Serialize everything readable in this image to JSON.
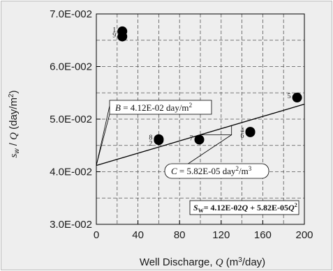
{
  "chart_data": {
    "type": "scatter",
    "xlabel": {
      "prefix": "Well Discharge, ",
      "var": "Q",
      "unit_open": " (m",
      "sup": "3",
      "unit_close": "/day)"
    },
    "ylabel": {
      "s": "s",
      "sub": "w",
      "slash": " / ",
      "var": "Q",
      "unit_open": " (day/m",
      "sup": "2",
      "unit_close": ")"
    },
    "xlim": [
      0,
      200
    ],
    "ylim": [
      0.03,
      0.07
    ],
    "x_ticks": [
      0,
      40,
      80,
      120,
      160,
      200
    ],
    "x_tick_labels": [
      "0",
      "40",
      "80",
      "120",
      "160",
      "200"
    ],
    "y_ticks": [
      0.03,
      0.04,
      0.05,
      0.06,
      0.07
    ],
    "y_tick_labels": [
      "3.0E-002",
      "4.0E-002",
      "5.0E-002",
      "6.0E-002",
      "7.0E-002"
    ],
    "grid": true,
    "points": [
      {
        "label": "1",
        "x": 25,
        "y": 0.0667
      },
      {
        "label": "9",
        "x": 25,
        "y": 0.0657
      },
      {
        "label": "8",
        "x": 60,
        "y": 0.0462
      },
      {
        "label": "2",
        "x": 60,
        "y": 0.046
      },
      {
        "label": "7",
        "x": 99,
        "y": 0.0461
      },
      {
        "label": "4",
        "x": 148,
        "y": 0.0476
      },
      {
        "label": "6",
        "x": 148,
        "y": 0.0475
      },
      {
        "label": "5",
        "x": 193,
        "y": 0.0541
      }
    ],
    "fit_line": {
      "intercept": 0.0412,
      "slope": 5.82e-05,
      "x_range": [
        0,
        200
      ]
    },
    "annotations": {
      "B": {
        "var": "B",
        "text": " = 4.12E-02 day/m",
        "sup": "2"
      },
      "C": {
        "var": "C",
        "text": " = 5.82E-05 day",
        "sup1": "2",
        "mid": "/m",
        "sup2": "3"
      },
      "equation": {
        "s": "S",
        "sub": "W",
        "text1": "= 4.12E-02",
        "q1": "Q",
        "text2": " + 5.82E-05",
        "q2": "Q",
        "sup": "2"
      }
    },
    "colors": {
      "marker": "#000000",
      "grid": "#555555",
      "line": "#000000",
      "background": "#eeeeee"
    }
  }
}
